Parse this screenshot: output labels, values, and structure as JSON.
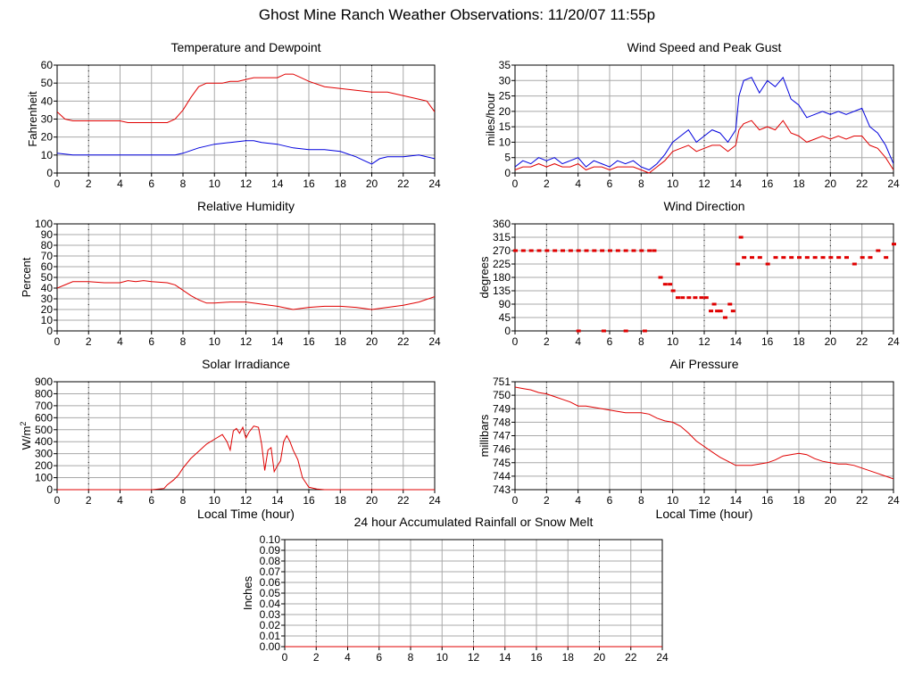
{
  "page_title": "Ghost Mine Ranch Weather Observations: 11/20/07 11:55p",
  "colors": {
    "red": "#e00000",
    "blue": "#0000dd",
    "grid": "#a8a8a8",
    "background": "#ffffff"
  },
  "chart_data": [
    {
      "id": "temperature",
      "type": "line",
      "title": "Temperature and Dewpoint",
      "xlabel": "",
      "ylabel": "Fahrenheit",
      "xlim": [
        0,
        24
      ],
      "ylim": [
        0,
        60
      ],
      "xticks": [
        0,
        2,
        4,
        6,
        8,
        10,
        12,
        14,
        16,
        18,
        20,
        22,
        24
      ],
      "yticks": [
        0,
        10,
        20,
        30,
        40,
        50,
        60
      ],
      "ytick_labels": [
        "0",
        "10",
        "20",
        "30",
        "40",
        "50",
        "60"
      ],
      "grid": true,
      "series": [
        {
          "color": "#e00000",
          "x": [
            0,
            0.5,
            1,
            2,
            3,
            4,
            4.5,
            5,
            6,
            6.5,
            7,
            7.5,
            8,
            8.5,
            9,
            9.5,
            10,
            10.5,
            11,
            11.5,
            12,
            12.5,
            13,
            13.5,
            14,
            14.5,
            15,
            15.5,
            16,
            17,
            18,
            19,
            20,
            21,
            21.5,
            22,
            23,
            23.5,
            24
          ],
          "y": [
            34,
            30,
            29,
            29,
            29,
            29,
            28,
            28,
            28,
            28,
            28,
            30,
            35,
            42,
            48,
            50,
            50,
            50,
            51,
            51,
            52,
            53,
            53,
            53,
            53,
            55,
            55,
            53,
            51,
            48,
            47,
            46,
            45,
            45,
            44,
            43,
            41,
            40,
            34
          ]
        },
        {
          "color": "#0000dd",
          "x": [
            0,
            1,
            2,
            3,
            4,
            5,
            6,
            7,
            7.5,
            8,
            9,
            10,
            11,
            12,
            12.5,
            13,
            14,
            15,
            16,
            17,
            18,
            19,
            19.5,
            20,
            20.5,
            21,
            22,
            23,
            24
          ],
          "y": [
            11,
            10,
            10,
            10,
            10,
            10,
            10,
            10,
            10,
            11,
            14,
            16,
            17,
            18,
            18,
            17,
            16,
            14,
            13,
            13,
            12,
            9,
            7,
            5,
            8,
            9,
            9,
            10,
            8
          ]
        }
      ]
    },
    {
      "id": "wind-speed",
      "type": "line",
      "title": "Wind Speed and Peak Gust",
      "xlabel": "",
      "ylabel": "miles/hour",
      "xlim": [
        0,
        24
      ],
      "ylim": [
        0,
        35
      ],
      "xticks": [
        0,
        2,
        4,
        6,
        8,
        10,
        12,
        14,
        16,
        18,
        20,
        22,
        24
      ],
      "yticks": [
        0,
        5,
        10,
        15,
        20,
        25,
        30,
        35
      ],
      "ytick_labels": [
        "0",
        "5",
        "10",
        "15",
        "20",
        "25",
        "30",
        "35"
      ],
      "grid": true,
      "series": [
        {
          "color": "#0000dd",
          "x": [
            0,
            0.5,
            1,
            1.5,
            2,
            2.5,
            3,
            3.5,
            4,
            4.5,
            5,
            5.5,
            6,
            6.5,
            7,
            7.5,
            8,
            8.5,
            9,
            9.5,
            10,
            10.5,
            11,
            11.5,
            12,
            12.5,
            13,
            13.5,
            14,
            14.2,
            14.5,
            15,
            15.5,
            16,
            16.5,
            17,
            17.5,
            18,
            18.5,
            19,
            19.5,
            20,
            20.5,
            21,
            21.5,
            22,
            22.5,
            23,
            23.5,
            24
          ],
          "y": [
            2,
            4,
            3,
            5,
            4,
            5,
            3,
            4,
            5,
            2,
            4,
            3,
            2,
            4,
            3,
            4,
            2,
            1,
            3,
            6,
            10,
            12,
            14,
            10,
            12,
            14,
            13,
            10,
            14,
            25,
            30,
            31,
            26,
            30,
            28,
            31,
            24,
            22,
            18,
            19,
            20,
            19,
            20,
            19,
            20,
            21,
            15,
            13,
            9,
            3
          ]
        },
        {
          "color": "#e00000",
          "x": [
            0,
            0.5,
            1,
            1.5,
            2,
            2.5,
            3,
            3.5,
            4,
            4.5,
            5,
            5.5,
            6,
            6.5,
            7,
            7.5,
            8,
            8.5,
            9,
            9.5,
            10,
            10.5,
            11,
            11.5,
            12,
            12.5,
            13,
            13.5,
            14,
            14.2,
            14.5,
            15,
            15.5,
            16,
            16.5,
            17,
            17.5,
            18,
            18.5,
            19,
            19.5,
            20,
            20.5,
            21,
            21.5,
            22,
            22.5,
            23,
            23.5,
            24
          ],
          "y": [
            1,
            2,
            2,
            3,
            2,
            3,
            2,
            2,
            3,
            1,
            2,
            2,
            1,
            2,
            2,
            2,
            1,
            0,
            2,
            4,
            7,
            8,
            9,
            7,
            8,
            9,
            9,
            7,
            9,
            14,
            16,
            17,
            14,
            15,
            14,
            17,
            13,
            12,
            10,
            11,
            12,
            11,
            12,
            11,
            12,
            12,
            9,
            8,
            5,
            1
          ]
        }
      ]
    },
    {
      "id": "humidity",
      "type": "line",
      "title": "Relative Humidity",
      "xlabel": "",
      "ylabel": "Percent",
      "xlim": [
        0,
        24
      ],
      "ylim": [
        0,
        100
      ],
      "xticks": [
        0,
        2,
        4,
        6,
        8,
        10,
        12,
        14,
        16,
        18,
        20,
        22,
        24
      ],
      "yticks": [
        0,
        10,
        20,
        30,
        40,
        50,
        60,
        70,
        80,
        90,
        100
      ],
      "ytick_labels": [
        "0",
        "10",
        "20",
        "30",
        "40",
        "50",
        "60",
        "70",
        "80",
        "90",
        "100"
      ],
      "grid": true,
      "series": [
        {
          "color": "#e00000",
          "x": [
            0,
            0.5,
            1,
            2,
            3,
            4,
            4.5,
            5,
            5.5,
            6,
            7,
            7.5,
            8,
            8.5,
            9,
            9.5,
            10,
            11,
            12,
            13,
            14,
            15,
            16,
            17,
            18,
            19,
            20,
            21,
            22,
            23,
            24
          ],
          "y": [
            40,
            43,
            46,
            46,
            45,
            45,
            47,
            46,
            47,
            46,
            45,
            43,
            38,
            33,
            29,
            26,
            26,
            27,
            27,
            25,
            23,
            20,
            22,
            23,
            23,
            22,
            20,
            22,
            24,
            27,
            32
          ]
        }
      ]
    },
    {
      "id": "wind-direction",
      "type": "scatter",
      "title": "Wind Direction",
      "xlabel": "",
      "ylabel": "degrees",
      "xlim": [
        0,
        24
      ],
      "ylim": [
        0,
        360
      ],
      "xticks": [
        0,
        2,
        4,
        6,
        8,
        10,
        12,
        14,
        16,
        18,
        20,
        22,
        24
      ],
      "yticks": [
        0,
        45,
        90,
        135,
        180,
        225,
        270,
        315,
        360
      ],
      "ytick_labels": [
        "0",
        "45",
        "90",
        "135",
        "180",
        "225",
        "270",
        "315",
        "360"
      ],
      "grid": true,
      "series": [
        {
          "color": "#e00000",
          "marker": "dot",
          "x": [
            0,
            0.5,
            1,
            1.5,
            2,
            2.5,
            3,
            3.5,
            4,
            4.5,
            5,
            5.5,
            6,
            6.5,
            7,
            7.5,
            8,
            8.5,
            8.8,
            9.2,
            9.5,
            9.8,
            10,
            10.3,
            10.6,
            11,
            11.4,
            11.8,
            12.1,
            12.4,
            12.6,
            12.8,
            13,
            13.3,
            13.6,
            13.8,
            14.1,
            14.3,
            14.5,
            15,
            15.5,
            16,
            16.5,
            17,
            17.5,
            18,
            18.5,
            19,
            19.5,
            20,
            20.5,
            21,
            21.5,
            22,
            22.5,
            23,
            23.5,
            24,
            4,
            5.6,
            7,
            8.2
          ],
          "y": [
            270,
            270,
            270,
            270,
            270,
            270,
            270,
            270,
            270,
            270,
            270,
            270,
            270,
            270,
            270,
            270,
            270,
            270,
            270,
            180,
            157,
            157,
            135,
            112,
            112,
            112,
            112,
            112,
            112,
            67,
            90,
            67,
            67,
            45,
            90,
            67,
            225,
            315,
            247,
            247,
            247,
            225,
            247,
            247,
            247,
            247,
            247,
            247,
            247,
            247,
            247,
            247,
            225,
            247,
            247,
            270,
            247,
            292,
            0,
            0,
            0,
            0
          ]
        }
      ]
    },
    {
      "id": "solar",
      "type": "line",
      "title": "Solar Irradiance",
      "xlabel": "Local Time (hour)",
      "ylabel": "W/m",
      "ylabel_sup": "2",
      "xlim": [
        0,
        24
      ],
      "ylim": [
        0,
        900
      ],
      "xticks": [
        0,
        2,
        4,
        6,
        8,
        10,
        12,
        14,
        16,
        18,
        20,
        22,
        24
      ],
      "yticks": [
        0,
        100,
        200,
        300,
        400,
        500,
        600,
        700,
        800,
        900
      ],
      "ytick_labels": [
        "0",
        "100",
        "200",
        "300",
        "400",
        "500",
        "600",
        "700",
        "800",
        "900"
      ],
      "grid": true,
      "series": [
        {
          "color": "#e00000",
          "x": [
            0,
            6,
            6.8,
            7,
            7.4,
            7.7,
            8,
            8.5,
            9,
            9.5,
            10,
            10.5,
            10.8,
            11,
            11.2,
            11.4,
            11.6,
            11.8,
            12,
            12.2,
            12.5,
            12.8,
            13,
            13.2,
            13.4,
            13.6,
            13.8,
            14,
            14.2,
            14.4,
            14.6,
            14.8,
            15,
            15.3,
            15.6,
            16,
            16.5,
            17,
            24
          ],
          "y": [
            0,
            0,
            10,
            40,
            80,
            120,
            180,
            260,
            320,
            380,
            420,
            460,
            400,
            330,
            490,
            510,
            470,
            520,
            430,
            480,
            530,
            520,
            380,
            160,
            330,
            350,
            150,
            200,
            240,
            400,
            450,
            400,
            330,
            250,
            100,
            20,
            5,
            0,
            0
          ]
        }
      ]
    },
    {
      "id": "pressure",
      "type": "line",
      "title": "Air Pressure",
      "xlabel": "Local Time (hour)",
      "ylabel": "millibars",
      "xlim": [
        0,
        24
      ],
      "ylim": [
        743,
        751
      ],
      "xticks": [
        0,
        2,
        4,
        6,
        8,
        10,
        12,
        14,
        16,
        18,
        20,
        22,
        24
      ],
      "yticks": [
        743,
        744,
        745,
        746,
        747,
        748,
        749,
        750,
        751
      ],
      "ytick_labels": [
        "743",
        "744",
        "745",
        "746",
        "747",
        "748",
        "749",
        "750",
        "751"
      ],
      "grid": true,
      "series": [
        {
          "color": "#e00000",
          "x": [
            0,
            0.5,
            1,
            1.5,
            2,
            2.5,
            3,
            3.5,
            4,
            4.5,
            5,
            5.5,
            6,
            6.5,
            7,
            7.5,
            8,
            8.5,
            9,
            9.5,
            10,
            10.5,
            11,
            11.5,
            12,
            12.5,
            13,
            13.5,
            14,
            14.5,
            15,
            15.5,
            16,
            16.5,
            17,
            17.5,
            18,
            18.5,
            19,
            19.5,
            20,
            20.5,
            21,
            21.5,
            22,
            22.5,
            23,
            23.5,
            24
          ],
          "y": [
            750.6,
            750.5,
            750.4,
            750.2,
            750.1,
            749.9,
            749.7,
            749.5,
            749.2,
            749.2,
            749.1,
            749.0,
            748.9,
            748.8,
            748.7,
            748.7,
            748.7,
            748.6,
            748.3,
            748.1,
            748.0,
            747.7,
            747.2,
            746.6,
            746.2,
            745.8,
            745.4,
            745.1,
            744.8,
            744.8,
            744.8,
            744.9,
            745.0,
            745.2,
            745.5,
            745.6,
            745.7,
            745.6,
            745.3,
            745.1,
            745.0,
            744.9,
            744.9,
            744.8,
            744.6,
            744.4,
            744.2,
            744.0,
            743.8
          ]
        }
      ]
    },
    {
      "id": "rainfall",
      "type": "line",
      "title": "24 hour Accumulated Rainfall or Snow Melt",
      "xlabel": "",
      "ylabel": "Inches",
      "xlim": [
        0,
        24
      ],
      "ylim": [
        0,
        0.1
      ],
      "xticks": [
        0,
        2,
        4,
        6,
        8,
        10,
        12,
        14,
        16,
        18,
        20,
        22,
        24
      ],
      "yticks": [
        0,
        0.01,
        0.02,
        0.03,
        0.04,
        0.05,
        0.06,
        0.07,
        0.08,
        0.09,
        0.1
      ],
      "ytick_labels": [
        "0.00",
        "0.01",
        "0.02",
        "0.03",
        "0.04",
        "0.05",
        "0.06",
        "0.07",
        "0.08",
        "0.09",
        "0.10"
      ],
      "grid": true,
      "series": [
        {
          "color": "#e00000",
          "x": [
            0,
            24
          ],
          "y": [
            0,
            0
          ]
        }
      ]
    }
  ]
}
